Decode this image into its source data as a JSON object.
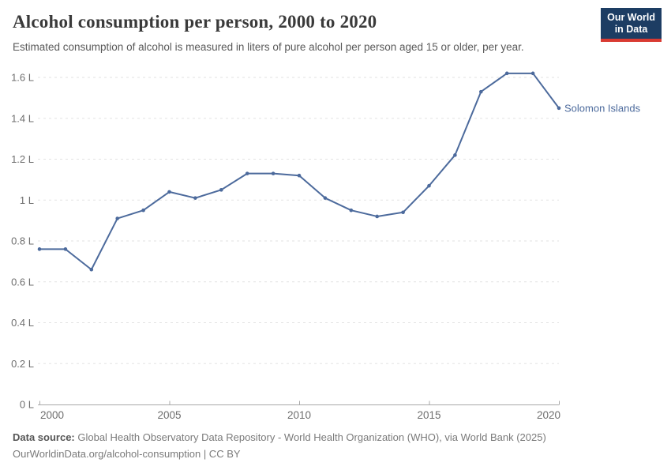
{
  "header": {
    "title": "Alcohol consumption per person, 2000 to 2020",
    "subtitle": "Estimated consumption of alcohol is measured in liters of pure alcohol per person aged 15 or older, per year.",
    "logo_line1": "Our World",
    "logo_line2": "in Data"
  },
  "chart_data": {
    "type": "line",
    "title": "Alcohol consumption per person, 2000 to 2020",
    "xlabel": "",
    "ylabel": "",
    "x": [
      2000,
      2001,
      2002,
      2003,
      2004,
      2005,
      2006,
      2007,
      2008,
      2009,
      2010,
      2011,
      2012,
      2013,
      2014,
      2015,
      2016,
      2017,
      2018,
      2019,
      2020
    ],
    "series": [
      {
        "name": "Solomon Islands",
        "color": "#4c6a9c",
        "values": [
          0.76,
          0.76,
          0.66,
          0.91,
          0.95,
          1.04,
          1.01,
          1.05,
          1.13,
          1.13,
          1.12,
          1.01,
          0.95,
          0.92,
          0.94,
          1.07,
          1.22,
          1.53,
          1.62,
          1.62,
          1.45
        ]
      }
    ],
    "ylim": [
      0,
      1.6
    ],
    "yticks": [
      0,
      0.2,
      0.4,
      0.6,
      0.8,
      1,
      1.2,
      1.4,
      1.6
    ],
    "ytick_labels": [
      "0 L",
      "0.2 L",
      "0.4 L",
      "0.6 L",
      "0.8 L",
      "1 L",
      "1.2 L",
      "1.4 L",
      "1.6 L"
    ],
    "xticks": [
      2000,
      2005,
      2010,
      2015,
      2020
    ],
    "xtick_labels": [
      "2000",
      "2005",
      "2010",
      "2015",
      "2020"
    ],
    "grid": "horizontal-dashed",
    "legend_position": "end-of-line-label",
    "end_label": "Solomon Islands"
  },
  "footer": {
    "source_bold": "Data source:",
    "source_rest": " Global Health Observatory Data Repository - World Health Organization (WHO), via World Bank (2025)",
    "citation": "OurWorldinData.org/alcohol-consumption | CC BY"
  },
  "colors": {
    "line": "#4c6a9c",
    "end_label": "#4c6a9c",
    "grid": "#e2e2e2",
    "axis": "#a8a8a8",
    "tick_text": "#6e6e6e",
    "logo_bg": "#1d3d63",
    "logo_stripe": "#d93a32"
  }
}
